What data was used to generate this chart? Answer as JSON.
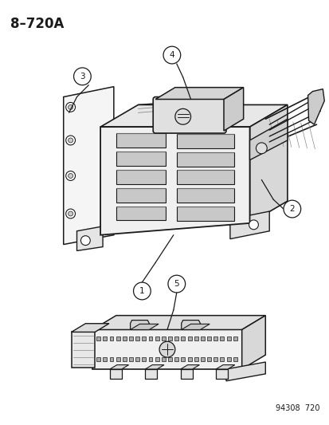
{
  "title": "8–720A",
  "footer": "94308  720",
  "background_color": "#ffffff",
  "line_color": "#1a1a1a",
  "fig_width": 4.14,
  "fig_height": 5.33,
  "dpi": 100
}
